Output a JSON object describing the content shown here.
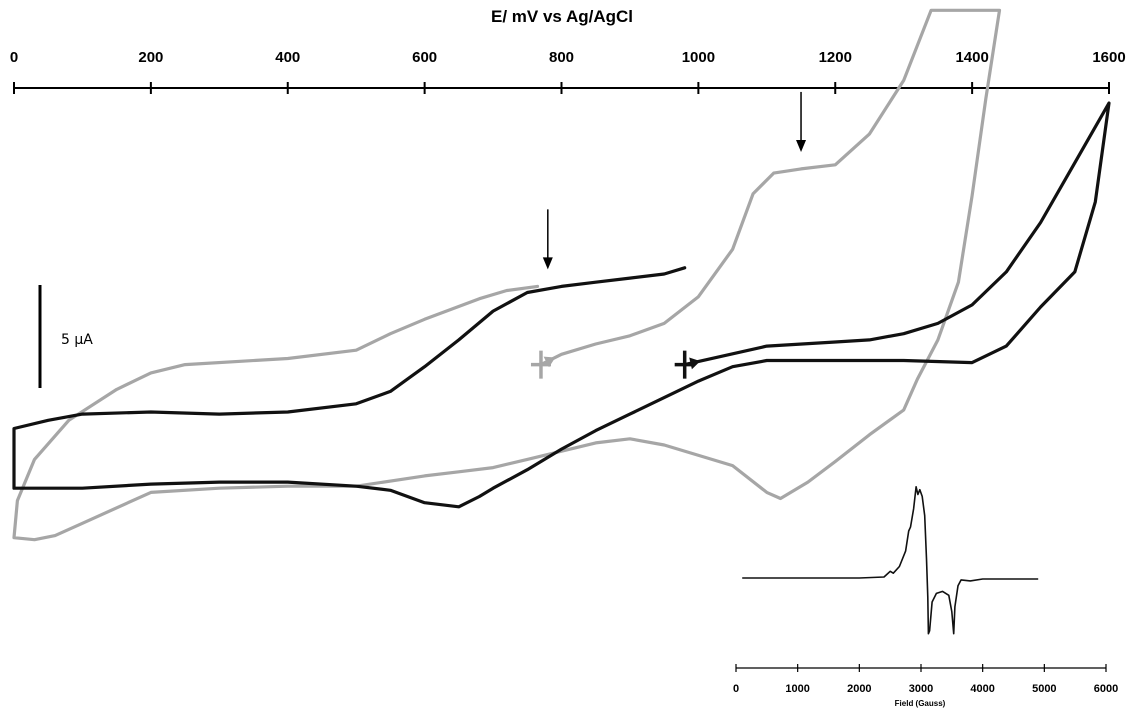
{
  "chart_data": [
    {
      "type": "line",
      "title": "",
      "xlabel": "E/ mV vs Ag/AgCl",
      "ylabel": "",
      "xlim": [
        0,
        1600
      ],
      "x_ticks": [
        0,
        200,
        400,
        600,
        800,
        1000,
        1200,
        1400,
        1600
      ],
      "axis_position": "top",
      "y_axis_shown": false,
      "grid": false,
      "legend": "none",
      "current_scale_bar": {
        "label": "5 µA",
        "value_uA": 5
      },
      "series_colors": {
        "gray": "#a6a6a6",
        "black": "#111111"
      },
      "series": [
        {
          "color": "gray",
          "note_start": "+",
          "start_marker_potential_mV": 770,
          "arrow_at_mV": 1150,
          "points": [
            [
              770,
              0.6
            ],
            [
              800,
              1.1
            ],
            [
              850,
              1.6
            ],
            [
              900,
              2.0
            ],
            [
              950,
              2.6
            ],
            [
              1000,
              3.9
            ],
            [
              1050,
              6.2
            ],
            [
              1080,
              8.9
            ],
            [
              1110,
              9.9
            ],
            [
              1150,
              10.1
            ],
            [
              1200,
              10.3
            ],
            [
              1250,
              11.8
            ],
            [
              1300,
              14.4
            ],
            [
              1340,
              17.8
            ],
            [
              1440,
              17.8
            ],
            [
              1420,
              13.5
            ],
            [
              1400,
              8.8
            ],
            [
              1380,
              4.6
            ],
            [
              1350,
              1.8
            ],
            [
              1320,
              -0.1
            ],
            [
              1300,
              -1.6
            ],
            [
              1250,
              -2.8
            ],
            [
              1200,
              -4.1
            ],
            [
              1160,
              -5.1
            ],
            [
              1120,
              -5.9
            ],
            [
              1100,
              -5.6
            ],
            [
              1050,
              -4.3
            ],
            [
              950,
              -3.3
            ],
            [
              900,
              -3.0
            ],
            [
              850,
              -3.2
            ],
            [
              800,
              -3.6
            ],
            [
              750,
              -4.0
            ],
            [
              700,
              -4.4
            ],
            [
              650,
              -4.6
            ],
            [
              600,
              -4.8
            ],
            [
              500,
              -5.3
            ],
            [
              400,
              -5.3
            ],
            [
              300,
              -5.4
            ],
            [
              200,
              -5.6
            ],
            [
              100,
              -7.1
            ],
            [
              60,
              -7.7
            ],
            [
              30,
              -7.9
            ],
            [
              0,
              -7.8
            ],
            [
              5,
              -6.0
            ],
            [
              30,
              -4.0
            ],
            [
              80,
              -2.1
            ],
            [
              150,
              -0.6
            ],
            [
              200,
              0.2
            ],
            [
              250,
              0.6
            ],
            [
              400,
              0.9
            ],
            [
              500,
              1.3
            ],
            [
              550,
              2.1
            ],
            [
              600,
              2.8
            ],
            [
              680,
              3.8
            ],
            [
              720,
              4.2
            ],
            [
              765,
              4.4
            ]
          ]
        },
        {
          "color": "black",
          "note_start": "+",
          "start_marker_potential_mV": 980,
          "arrow_at_mV": 780,
          "points": [
            [
              980,
              0.6
            ],
            [
              1100,
              1.5
            ],
            [
              1200,
              1.7
            ],
            [
              1250,
              1.8
            ],
            [
              1300,
              2.1
            ],
            [
              1350,
              2.6
            ],
            [
              1400,
              3.5
            ],
            [
              1450,
              5.1
            ],
            [
              1500,
              7.5
            ],
            [
              1550,
              10.4
            ],
            [
              1600,
              13.3
            ],
            [
              1580,
              8.5
            ],
            [
              1550,
              5.1
            ],
            [
              1500,
              3.4
            ],
            [
              1450,
              1.5
            ],
            [
              1400,
              0.7
            ],
            [
              1300,
              0.8
            ],
            [
              1100,
              0.8
            ],
            [
              1050,
              0.5
            ],
            [
              1000,
              -0.2
            ],
            [
              950,
              -1.0
            ],
            [
              900,
              -1.8
            ],
            [
              850,
              -2.6
            ],
            [
              800,
              -3.5
            ],
            [
              750,
              -4.5
            ],
            [
              700,
              -5.4
            ],
            [
              680,
              -5.8
            ],
            [
              650,
              -6.3
            ],
            [
              600,
              -6.1
            ],
            [
              550,
              -5.5
            ],
            [
              500,
              -5.3
            ],
            [
              400,
              -5.1
            ],
            [
              300,
              -5.1
            ],
            [
              200,
              -5.2
            ],
            [
              100,
              -5.4
            ],
            [
              0,
              -5.4
            ],
            [
              0,
              -2.5
            ],
            [
              50,
              -2.1
            ],
            [
              100,
              -1.8
            ],
            [
              200,
              -1.7
            ],
            [
              300,
              -1.8
            ],
            [
              400,
              -1.7
            ],
            [
              500,
              -1.3
            ],
            [
              550,
              -0.7
            ],
            [
              600,
              0.5
            ],
            [
              650,
              1.8
            ],
            [
              700,
              3.2
            ],
            [
              750,
              4.1
            ],
            [
              800,
              4.4
            ],
            [
              850,
              4.6
            ],
            [
              900,
              4.8
            ],
            [
              950,
              5.0
            ],
            [
              980,
              5.3
            ]
          ]
        }
      ]
    },
    {
      "type": "line",
      "title": "",
      "xlabel": "Field (Gauss)",
      "ylabel": "",
      "xlim": [
        0,
        6000
      ],
      "x_ticks": [
        0,
        1000,
        2000,
        3000,
        4000,
        5000,
        6000
      ],
      "axis_position": "bottom",
      "y_axis_shown": false,
      "grid": false,
      "legend": "none",
      "series": [
        {
          "color": "black",
          "points": [
            [
              100,
              0
            ],
            [
              1000,
              0.0
            ],
            [
              2000,
              0.0
            ],
            [
              2400,
              0.1
            ],
            [
              2500,
              0.7
            ],
            [
              2550,
              0.5
            ],
            [
              2650,
              1.2
            ],
            [
              2750,
              2.8
            ],
            [
              2800,
              4.9
            ],
            [
              2830,
              5.3
            ],
            [
              2880,
              7.2
            ],
            [
              2920,
              9.5
            ],
            [
              2950,
              8.7
            ],
            [
              2980,
              9.2
            ],
            [
              3020,
              8.5
            ],
            [
              3060,
              6.5
            ],
            [
              3090,
              2.0
            ],
            [
              3110,
              -2.0
            ],
            [
              3120,
              -5.8
            ],
            [
              3140,
              -5.5
            ],
            [
              3180,
              -2.5
            ],
            [
              3250,
              -1.6
            ],
            [
              3350,
              -1.4
            ],
            [
              3450,
              -1.8
            ],
            [
              3500,
              -3.5
            ],
            [
              3530,
              -5.8
            ],
            [
              3550,
              -3.0
            ],
            [
              3600,
              -0.8
            ],
            [
              3650,
              -0.2
            ],
            [
              3800,
              -0.3
            ],
            [
              4000,
              -0.1
            ],
            [
              4500,
              -0.1
            ],
            [
              4900,
              -0.1
            ]
          ]
        }
      ]
    }
  ]
}
